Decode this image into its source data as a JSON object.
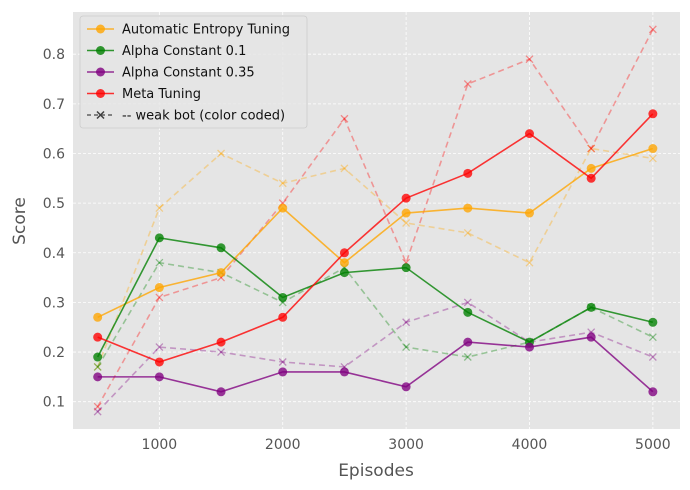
{
  "chart_data": {
    "type": "line",
    "title": "",
    "xlabel": "Episodes",
    "ylabel": "Score",
    "x": [
      500,
      1000,
      1500,
      2000,
      2500,
      3000,
      3500,
      4000,
      4500,
      5000
    ],
    "xlim": [
      300,
      5220
    ],
    "ylim": [
      0.045,
      0.885
    ],
    "xticks": [
      1000,
      2000,
      3000,
      4000,
      5000
    ],
    "xtick_labels": [
      "1000",
      "2000",
      "3000",
      "4000",
      "5000"
    ],
    "yticks": [
      0.1,
      0.2,
      0.3,
      0.4,
      0.5,
      0.6,
      0.7,
      0.8
    ],
    "ytick_labels": [
      "0.1",
      "0.2",
      "0.3",
      "0.4",
      "0.5",
      "0.6",
      "0.7",
      "0.8"
    ],
    "grid": true,
    "legend_position": "top-left",
    "series": [
      {
        "name": "Automatic Entropy Tuning",
        "color": "#FFA500",
        "style": "solid-circle",
        "values": [
          0.27,
          0.33,
          0.36,
          0.49,
          0.38,
          0.48,
          0.49,
          0.48,
          0.57,
          0.61
        ]
      },
      {
        "name": "Alpha Constant 0.1",
        "color": "#008000",
        "style": "solid-circle",
        "values": [
          0.19,
          0.43,
          0.41,
          0.31,
          0.36,
          0.37,
          0.28,
          0.22,
          0.29,
          0.26
        ]
      },
      {
        "name": "Alpha Constant 0.35",
        "color": "#800080",
        "style": "solid-circle",
        "values": [
          0.15,
          0.15,
          0.12,
          0.16,
          0.16,
          0.13,
          0.22,
          0.21,
          0.23,
          0.12
        ]
      },
      {
        "name": "Meta Tuning",
        "color": "#FF0000",
        "style": "solid-circle",
        "values": [
          0.23,
          0.18,
          0.22,
          0.27,
          0.4,
          0.51,
          0.56,
          0.64,
          0.55,
          0.68
        ]
      },
      {
        "name": "Automatic Entropy Tuning (weak bot)",
        "color": "#FFA500",
        "style": "dashed-x",
        "legend": false,
        "values": [
          0.17,
          0.49,
          0.6,
          0.54,
          0.57,
          0.46,
          0.44,
          0.38,
          0.61,
          0.59
        ]
      },
      {
        "name": "Alpha Constant 0.1 (weak bot)",
        "color": "#008000",
        "style": "dashed-x",
        "legend": false,
        "values": [
          0.17,
          0.38,
          0.36,
          0.3,
          0.37,
          0.21,
          0.19,
          0.22,
          0.29,
          0.23
        ]
      },
      {
        "name": "Alpha Constant 0.35 (weak bot)",
        "color": "#800080",
        "style": "dashed-x",
        "legend": false,
        "values": [
          0.08,
          0.21,
          0.2,
          0.18,
          0.17,
          0.26,
          0.3,
          0.22,
          0.24,
          0.19
        ]
      },
      {
        "name": "Meta Tuning (weak bot)",
        "color": "#FF0000",
        "style": "dashed-x",
        "legend": false,
        "values": [
          0.09,
          0.31,
          0.35,
          0.5,
          0.67,
          0.38,
          0.74,
          0.79,
          0.61,
          0.85
        ]
      }
    ],
    "legend": [
      {
        "label": "Automatic Entropy Tuning",
        "color": "#FFA500",
        "style": "solid-circle"
      },
      {
        "label": "Alpha Constant 0.1",
        "color": "#008000",
        "style": "solid-circle"
      },
      {
        "label": "Alpha Constant 0.35",
        "color": "#800080",
        "style": "solid-circle"
      },
      {
        "label": "Meta Tuning",
        "color": "#FF0000",
        "style": "solid-circle"
      },
      {
        "label": "-- weak bot (color coded)",
        "color": "#404040",
        "style": "dashed-x"
      }
    ]
  }
}
